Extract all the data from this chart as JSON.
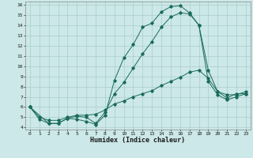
{
  "xlabel": "Humidex (Indice chaleur)",
  "bg_color": "#cce8e8",
  "grid_color": "#aacccc",
  "line_color": "#1a6b5a",
  "xlim": [
    -0.5,
    23.5
  ],
  "ylim": [
    3.8,
    16.3
  ],
  "xticks": [
    0,
    1,
    2,
    3,
    4,
    5,
    6,
    7,
    8,
    9,
    10,
    11,
    12,
    13,
    14,
    15,
    16,
    17,
    18,
    19,
    20,
    21,
    22,
    23
  ],
  "yticks": [
    4,
    5,
    6,
    7,
    8,
    9,
    10,
    11,
    12,
    13,
    14,
    15,
    16
  ],
  "series": [
    {
      "x": [
        0,
        1,
        2,
        3,
        4,
        5,
        6,
        7,
        8,
        9,
        10,
        11,
        12,
        13,
        14,
        15,
        16,
        17,
        18,
        19,
        20,
        21,
        22,
        23
      ],
      "y": [
        6.0,
        4.8,
        4.4,
        4.4,
        4.9,
        4.8,
        4.6,
        4.3,
        5.2,
        8.6,
        10.8,
        12.1,
        13.8,
        14.2,
        15.3,
        15.8,
        15.9,
        15.2,
        14.0,
        9.6,
        7.5,
        6.9,
        7.3,
        7.3
      ]
    },
    {
      "x": [
        0,
        2,
        3,
        4,
        5,
        6,
        7,
        8,
        9,
        10,
        11,
        12,
        13,
        14,
        15,
        16,
        17,
        18,
        19,
        20,
        21,
        22,
        23
      ],
      "y": [
        6.0,
        4.4,
        4.4,
        4.9,
        5.1,
        5.0,
        4.4,
        5.5,
        7.3,
        8.4,
        9.8,
        11.2,
        12.4,
        13.8,
        14.8,
        15.2,
        15.1,
        14.0,
        8.5,
        7.2,
        6.7,
        7.0,
        7.3
      ]
    },
    {
      "x": [
        0,
        1,
        2,
        3,
        4,
        5,
        6,
        7,
        8,
        9,
        10,
        11,
        12,
        13,
        14,
        15,
        16,
        17,
        18,
        19,
        20,
        21,
        22,
        23
      ],
      "y": [
        6.0,
        5.0,
        4.7,
        4.7,
        5.0,
        5.2,
        5.2,
        5.3,
        5.7,
        6.3,
        6.6,
        7.0,
        7.3,
        7.6,
        8.1,
        8.5,
        8.9,
        9.4,
        9.6,
        8.8,
        7.5,
        7.2,
        7.2,
        7.5
      ]
    }
  ]
}
